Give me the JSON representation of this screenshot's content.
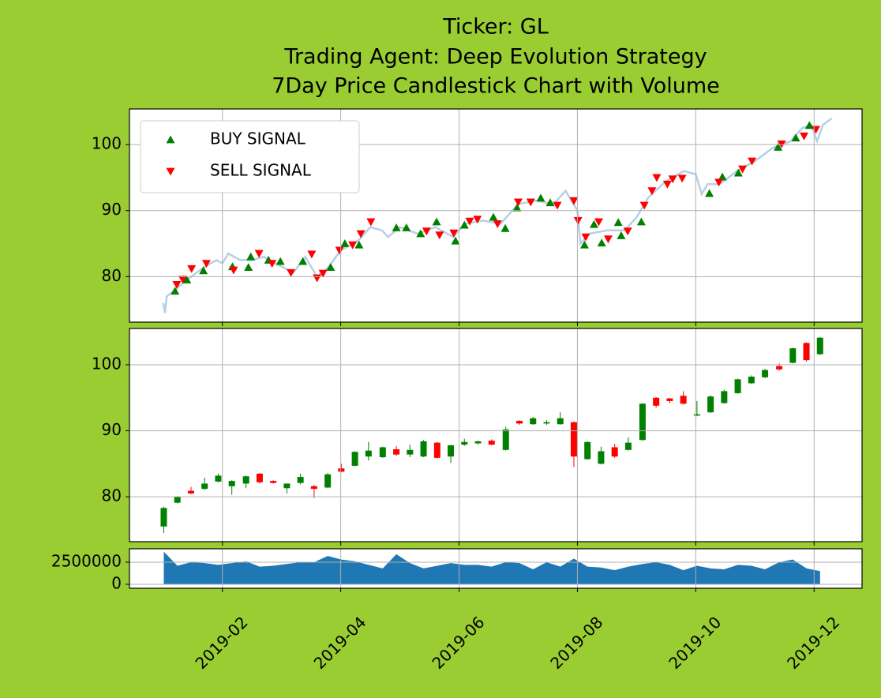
{
  "chart_data": [
    {
      "type": "line",
      "title": [
        "Ticker: GL",
        "Trading Agent: Deep Evolution Strategy",
        "7Day Price Candlestick Chart with Volume"
      ],
      "xlim": [
        0.43,
        12.81
      ],
      "xticks": [
        2,
        4,
        6,
        8,
        10,
        12
      ],
      "ylim": [
        73.1,
        105.4
      ],
      "yticks": [
        80,
        90,
        100
      ],
      "grid": true,
      "legend": "upper left",
      "line": {
        "color": "#b5d0e6",
        "x": [
          1.0,
          1.03,
          1.06,
          1.2,
          1.4,
          1.7,
          1.9,
          2.0,
          2.1,
          2.3,
          2.5,
          2.7,
          2.9,
          3.2,
          3.4,
          3.6,
          3.8,
          4.0,
          4.3,
          4.5,
          4.7,
          4.8,
          5.0,
          5.3,
          5.6,
          5.9,
          6.1,
          6.4,
          6.7,
          7.0,
          7.3,
          7.6,
          7.8,
          8.0,
          8.05,
          8.2,
          8.5,
          8.8,
          9.0,
          9.2,
          9.5,
          9.8,
          10.0,
          10.1,
          10.2,
          10.4,
          10.7,
          11.0,
          11.3,
          11.6,
          11.8,
          11.95,
          12.05,
          12.15,
          12.3
        ],
        "values": [
          76,
          74.5,
          77,
          78,
          79.5,
          81.5,
          82.5,
          82,
          83.5,
          82.5,
          82.5,
          83,
          82,
          80.6,
          83,
          80,
          81.5,
          84,
          85.5,
          87.5,
          87,
          86,
          87.5,
          86.5,
          87.5,
          86,
          88,
          88.5,
          88,
          91,
          91.5,
          91,
          93,
          90,
          85,
          86.5,
          87,
          87,
          89,
          92,
          94.5,
          96,
          95.5,
          92.5,
          94,
          94,
          96,
          97.5,
          99.5,
          100.5,
          102.5,
          103,
          100.5,
          103,
          104
        ]
      },
      "series": [
        {
          "name": "BUY SIGNAL",
          "color": "#008000",
          "marker": "up",
          "x": [
            1.2,
            1.4,
            1.68,
            2.17,
            2.44,
            2.48,
            2.78,
            2.98,
            3.36,
            3.83,
            4.07,
            4.31,
            4.94,
            5.11,
            5.35,
            5.62,
            5.94,
            6.09,
            6.58,
            6.78,
            6.98,
            7.38,
            7.54,
            8.12,
            8.28,
            8.41,
            8.69,
            8.74,
            9.08,
            10.23,
            10.45,
            10.72,
            11.39,
            11.69,
            11.92
          ],
          "values": [
            77.8,
            79.5,
            80.9,
            81.5,
            81.4,
            83,
            82.5,
            82.3,
            82.3,
            81.4,
            85,
            84.8,
            87.4,
            87.4,
            86.5,
            88.3,
            85.4,
            87.8,
            89,
            87.3,
            90.4,
            91.9,
            91.2,
            84.8,
            87.9,
            85.1,
            88.2,
            86.2,
            88.3,
            92.6,
            95.1,
            95.7,
            99.6,
            101,
            102.9
          ]
        },
        {
          "name": "SELL SIGNAL",
          "color": "#ff0000",
          "marker": "down",
          "x": [
            1.23,
            1.33,
            1.48,
            1.73,
            2.19,
            2.62,
            2.84,
            3.16,
            3.51,
            3.6,
            3.7,
            3.98,
            4.2,
            4.34,
            4.51,
            5.45,
            5.67,
            5.91,
            6.18,
            6.31,
            6.65,
            7.0,
            7.21,
            7.66,
            7.94,
            8.01,
            8.14,
            8.36,
            8.52,
            8.85,
            9.13,
            9.26,
            9.34,
            9.52,
            9.61,
            9.77,
            10.39,
            10.79,
            10.95,
            11.45,
            11.83,
            12.03
          ],
          "values": [
            78.8,
            79.6,
            81.2,
            82,
            81,
            83.5,
            82,
            80.6,
            83.4,
            79.8,
            80.5,
            84,
            84.8,
            86.5,
            88.3,
            86.9,
            86.3,
            86.6,
            88.4,
            88.7,
            88,
            91.3,
            91.3,
            90.8,
            91.5,
            88.5,
            86,
            88.3,
            85.7,
            86.9,
            90.8,
            93,
            95,
            94,
            94.8,
            94.9,
            94.3,
            96.3,
            97.5,
            100.1,
            101.3,
            102.3
          ]
        }
      ]
    },
    {
      "type": "candlestick",
      "xlim": [
        0.43,
        12.81
      ],
      "xticks": [
        2,
        4,
        6,
        8,
        10,
        12
      ],
      "ylim": [
        73.2,
        105.5
      ],
      "yticks": [
        80,
        90,
        100
      ],
      "grid": true,
      "up_color": "#008000",
      "down_color": "#ff0000",
      "x": [
        1.01,
        1.24,
        1.47,
        1.7,
        1.93,
        2.16,
        2.4,
        2.63,
        2.86,
        3.09,
        3.32,
        3.55,
        3.78,
        4.01,
        4.24,
        4.47,
        4.71,
        4.94,
        5.17,
        5.4,
        5.63,
        5.86,
        6.09,
        6.32,
        6.55,
        6.79,
        7.02,
        7.25,
        7.48,
        7.71,
        7.94,
        8.17,
        8.4,
        8.63,
        8.86,
        9.1,
        9.33,
        9.56,
        9.79,
        10.02,
        10.25,
        10.48,
        10.71,
        10.94,
        11.17,
        11.41,
        11.64,
        11.87,
        12.1
      ],
      "open": [
        75.5,
        79.1,
        80.9,
        81.2,
        82.3,
        81.6,
        82,
        83.5,
        82.4,
        81.3,
        82.1,
        81.6,
        81.4,
        84.3,
        84.7,
        86.1,
        86,
        87.2,
        86.4,
        86.1,
        88.2,
        86.1,
        87.9,
        88.1,
        88.5,
        87.1,
        91.5,
        91,
        91.1,
        91,
        91.3,
        85.7,
        85,
        87.5,
        87.1,
        88.6,
        95,
        94.9,
        95.3,
        92.3,
        92.8,
        94.2,
        95.7,
        97.2,
        98.1,
        99.8,
        100.3,
        103.3,
        101.6
      ],
      "high": [
        78.5,
        80.1,
        81.5,
        82.9,
        83.5,
        82.5,
        83.2,
        83.6,
        82.5,
        82,
        83.5,
        81.8,
        83.6,
        85,
        86.9,
        88.3,
        87.6,
        87.7,
        87.9,
        88.6,
        88.3,
        87.9,
        88.8,
        88.5,
        88.7,
        90.6,
        91.6,
        92.1,
        91.6,
        92.8,
        91.4,
        88.4,
        87.6,
        88,
        89,
        94.2,
        95.1,
        95,
        96,
        94.5,
        95.4,
        96.2,
        97.9,
        98.4,
        99.4,
        100.2,
        102.6,
        103.4,
        104.2
      ],
      "low": [
        74.5,
        79,
        80.4,
        81,
        82.2,
        80.3,
        81.3,
        82,
        82,
        80.5,
        81.9,
        79.8,
        81.3,
        83.7,
        84.6,
        85.5,
        85.9,
        86.2,
        86,
        86,
        85.8,
        85.1,
        87.7,
        87.9,
        87.8,
        87,
        90.9,
        90.9,
        90.9,
        90.9,
        84.5,
        85.6,
        84.9,
        85.9,
        87,
        88.5,
        93.5,
        94.2,
        94,
        92.2,
        92.7,
        94.1,
        95.6,
        97.1,
        98,
        99.1,
        100.2,
        100.5,
        101.5
      ],
      "close": [
        78.3,
        80,
        80.5,
        82,
        83.2,
        82.4,
        83.1,
        82.2,
        82.1,
        82,
        83,
        81.2,
        83.4,
        83.8,
        86.8,
        87,
        87.5,
        86.4,
        87.1,
        88.4,
        85.9,
        87.8,
        88.3,
        88.4,
        87.9,
        90.2,
        91.1,
        91.9,
        91.3,
        91.9,
        86.1,
        88.3,
        86.9,
        86.1,
        88.2,
        94.1,
        93.8,
        94.5,
        94.1,
        92.5,
        95.2,
        96,
        97.8,
        98.2,
        99.2,
        99.3,
        102.5,
        100.7,
        104.1
      ]
    },
    {
      "type": "area",
      "xlim": [
        0.43,
        12.81
      ],
      "xticks": [
        {
          "value": 2,
          "label": "2019-02"
        },
        {
          "value": 4,
          "label": "2019-04"
        },
        {
          "value": 6,
          "label": "2019-06"
        },
        {
          "value": 8,
          "label": "2019-08"
        },
        {
          "value": 10,
          "label": "2019-10"
        },
        {
          "value": 12,
          "label": "2019-12"
        }
      ],
      "ylim": [
        -450000,
        4020000
      ],
      "yticks": [
        0,
        2500000
      ],
      "grid": true,
      "color": "#1f77b4",
      "x": [
        1.01,
        1.24,
        1.47,
        1.7,
        1.93,
        2.16,
        2.4,
        2.63,
        2.86,
        3.09,
        3.32,
        3.55,
        3.78,
        4.01,
        4.24,
        4.47,
        4.71,
        4.94,
        5.17,
        5.4,
        5.63,
        5.86,
        6.09,
        6.32,
        6.55,
        6.79,
        7.02,
        7.25,
        7.48,
        7.71,
        7.94,
        8.17,
        8.4,
        8.63,
        8.86,
        9.1,
        9.33,
        9.56,
        9.79,
        10.02,
        10.25,
        10.48,
        10.71,
        10.94,
        11.17,
        11.41,
        11.64,
        11.87,
        12.1
      ],
      "values": [
        3700000,
        2100000,
        2500000,
        2400000,
        2200000,
        2400000,
        2600000,
        2000000,
        2100000,
        2300000,
        2500000,
        2500000,
        3200000,
        2800000,
        2600000,
        2200000,
        1800000,
        3400000,
        2400000,
        1800000,
        2100000,
        2400000,
        2200000,
        2200000,
        2000000,
        2500000,
        2400000,
        1700000,
        2500000,
        2000000,
        2900000,
        2000000,
        1900000,
        1600000,
        2000000,
        2300000,
        2500000,
        2200000,
        1600000,
        2100000,
        1800000,
        1700000,
        2200000,
        2100000,
        1700000,
        2500000,
        2800000,
        1800000,
        1500000
      ]
    }
  ]
}
